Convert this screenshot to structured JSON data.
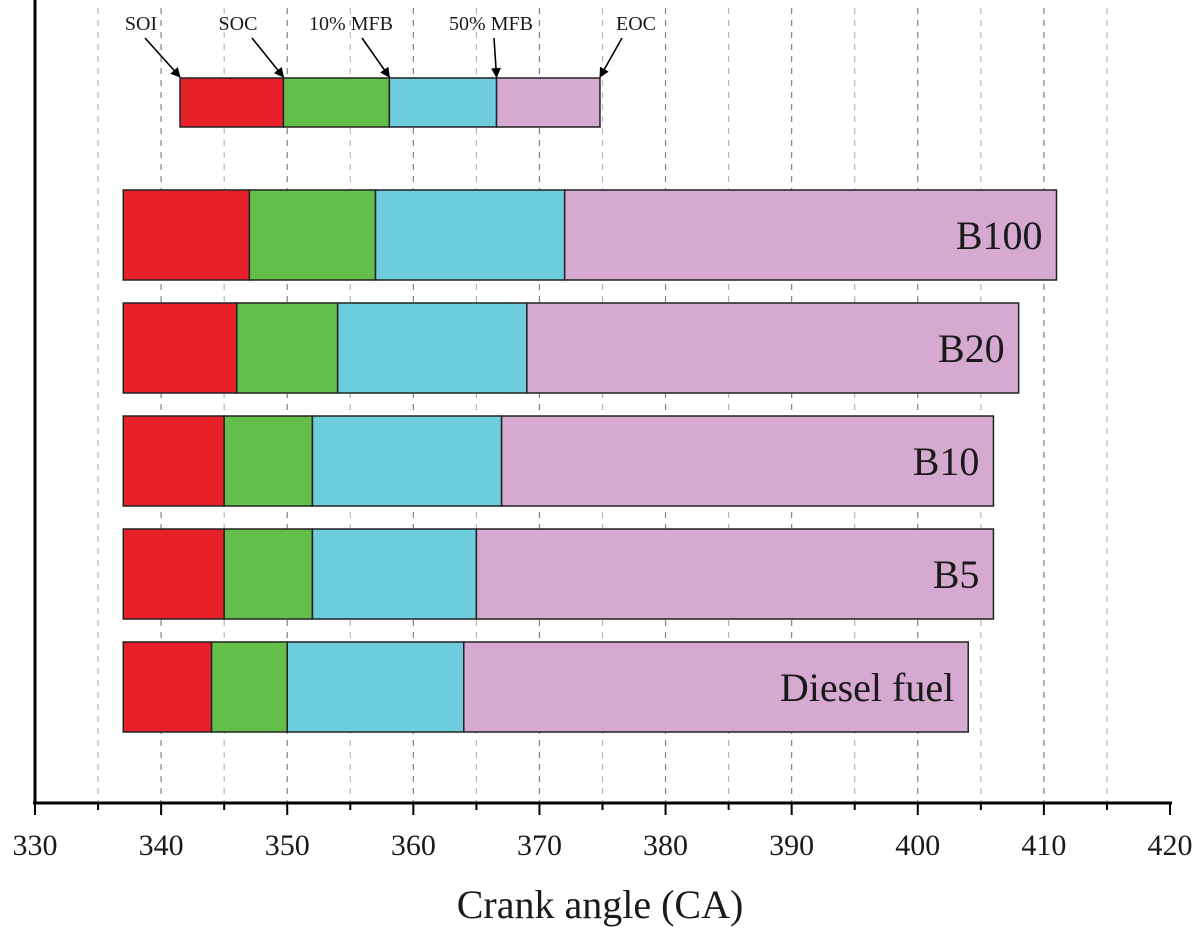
{
  "chart_data": {
    "type": "bar",
    "orientation": "horizontal-stacked-ranges",
    "xlabel": "Crank angle (CA)",
    "xlim": [
      330,
      420
    ],
    "xticks": [
      330,
      340,
      350,
      360,
      370,
      380,
      390,
      400,
      410,
      420
    ],
    "grid": true,
    "stage_colors": [
      "#e8202a",
      "#63bf4a",
      "#6dcddd",
      "#d6a9d1"
    ],
    "legend": {
      "labels": [
        "SOI",
        "SOC",
        "10% MFB",
        "50% MFB",
        "EOC"
      ],
      "boundaries": [
        341.5,
        349.7,
        358.1,
        366.6,
        374.8
      ]
    },
    "categories": [
      "B100",
      "B20",
      "B10",
      "B5",
      "Diesel fuel"
    ],
    "series": [
      {
        "label": "B100",
        "boundaries": [
          337,
          347,
          357,
          372,
          411
        ]
      },
      {
        "label": "B20",
        "boundaries": [
          337,
          346,
          354,
          369,
          408
        ]
      },
      {
        "label": "B10",
        "boundaries": [
          337,
          345,
          352,
          367,
          406
        ]
      },
      {
        "label": "B5",
        "boundaries": [
          337,
          345,
          352,
          365,
          406
        ]
      },
      {
        "label": "Diesel fuel",
        "boundaries": [
          337,
          344,
          350,
          364,
          404
        ]
      }
    ]
  }
}
